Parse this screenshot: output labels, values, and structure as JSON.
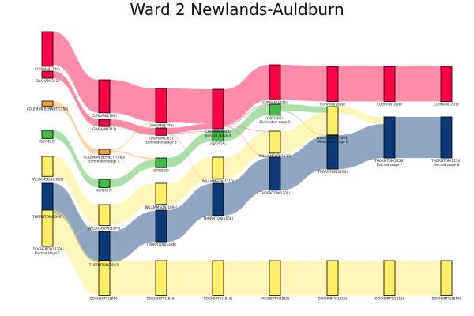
{
  "chart_data": {
    "type": "sankey",
    "title": "Ward 2 Newlands-Auldburn",
    "colors": {
      "CURRAN": "#ff0044",
      "GRAHAM": "#f2003f",
      "COLEMAN BENNETT": "#f5a235",
      "GAY": "#44bb44",
      "WILLIAMSON": "#ffee66",
      "THORNTON": "#0c3a78",
      "DOCHERTY": "#ffee66"
    },
    "stages": [
      {
        "nodes": [
          {
            "id": "s0-CURRAN",
            "candidate": "CURRAN",
            "label": "CURRAN(1794)",
            "value": 1794
          },
          {
            "id": "s0-GRAHAM",
            "candidate": "GRAHAM",
            "label": "GRAHAM(371)",
            "value": 371
          },
          {
            "id": "s0-COLEMAN",
            "candidate": "COLEMAN BENNETT",
            "label": "COLEMAN BENNETT(258)",
            "value": 258
          },
          {
            "id": "s0-GAY",
            "candidate": "GAY",
            "label": "GAY(422)",
            "value": 422
          },
          {
            "id": "s0-WILLIAMSON",
            "candidate": "WILLIAMSON",
            "label": "WILLIAMSON(1032)",
            "value": 1032
          },
          {
            "id": "s0-THORNTON",
            "candidate": "THORNTON",
            "label": "THORNTON(1594)",
            "value": 1594
          },
          {
            "id": "s0-DOCHERTY",
            "candidate": "DOCHERTY",
            "label": "DOCHERTY(1879)",
            "value": 1879,
            "note": "Elected stage 1"
          }
        ]
      },
      {
        "nodes": [
          {
            "id": "s1-CURRAN",
            "candidate": "CURRAN",
            "label": "CURRAN(1708)",
            "value": 1708
          },
          {
            "id": "s1-GRAHAM",
            "candidate": "GRAHAM",
            "label": "GRAHAM(373)",
            "value": 373
          },
          {
            "id": "s1-COLEMAN",
            "candidate": "COLEMAN BENNETT",
            "label": "COLEMAN BENNETT(260)",
            "value": 260,
            "note": "Eliminated stage 2"
          },
          {
            "id": "s1-GAY",
            "candidate": "GAY",
            "label": "GAY(427)",
            "value": 427
          },
          {
            "id": "s1-WILLIAMSON",
            "candidate": "WILLIAMSON",
            "label": "WILLIAMSON(1079)",
            "value": 1079
          },
          {
            "id": "s1-THORNTON",
            "candidate": "THORNTON",
            "label": "THORNTON(1597)",
            "value": 1597
          },
          {
            "id": "s1-DOCHERTY",
            "candidate": "DOCHERTY",
            "label": "DOCHERTY(1816)",
            "value": 1816
          }
        ]
      },
      {
        "nodes": [
          {
            "id": "s2-CURRAN",
            "candidate": "CURRAN",
            "label": "CURRAN(1776)",
            "value": 1776
          },
          {
            "id": "s2-GRAHAM",
            "candidate": "GRAHAM",
            "label": "GRAHAM(381)",
            "value": 381,
            "note": "Eliminated stage 3"
          },
          {
            "id": "s2-GAY",
            "candidate": "GAY",
            "label": "GAY(500)",
            "value": 500
          },
          {
            "id": "s2-WILLIAMSON",
            "candidate": "WILLIAMSON",
            "label": "WILLIAMSON(1094)",
            "value": 1094
          },
          {
            "id": "s2-THORNTON",
            "candidate": "THORNTON",
            "label": "THORNTON(1636)",
            "value": 1636
          },
          {
            "id": "s2-DOCHERTY",
            "candidate": "DOCHERTY",
            "label": "DOCHERTY(1816)",
            "value": 1816
          }
        ]
      },
      {
        "nodes": [
          {
            "id": "s3-CURRAN",
            "candidate": "CURRAN",
            "label": "CURRAN(2044)",
            "value": 2044,
            "note": "Elected stage 4"
          },
          {
            "id": "s3-GAY",
            "candidate": "GAY",
            "label": "GAY(525)",
            "value": 525
          },
          {
            "id": "s3-WILLIAMSON",
            "candidate": "WILLIAMSON",
            "label": "WILLIAMSON(1110)",
            "value": 1110
          },
          {
            "id": "s3-THORNTON",
            "candidate": "THORNTON",
            "label": "THORNTON(1668)",
            "value": 1668
          },
          {
            "id": "s3-DOCHERTY",
            "candidate": "DOCHERTY",
            "label": "DOCHERTY(1816)",
            "value": 1816
          }
        ]
      },
      {
        "nodes": [
          {
            "id": "s4-CURRAN",
            "candidate": "CURRAN",
            "label": "CURRAN(1816)",
            "value": 1816
          },
          {
            "id": "s4-GAY",
            "candidate": "GAY",
            "label": "GAY(566)",
            "value": 566,
            "note": "Eliminated stage 5"
          },
          {
            "id": "s4-WILLIAMSON",
            "candidate": "WILLIAMSON",
            "label": "WILLIAMSON(1139)",
            "value": 1139
          },
          {
            "id": "s4-THORNTON",
            "candidate": "THORNTON",
            "label": "THORNTON(1709)",
            "value": 1709
          },
          {
            "id": "s4-DOCHERTY",
            "candidate": "DOCHERTY",
            "label": "DOCHERTY(1816)",
            "value": 1816
          }
        ]
      },
      {
        "nodes": [
          {
            "id": "s5-CURRAN",
            "candidate": "CURRAN",
            "label": "CURRAN(1816)",
            "value": 1816
          },
          {
            "id": "s5-WILLIAMSON",
            "candidate": "WILLIAMSON",
            "label": "WILLIAMSON(1461)",
            "value": 1461,
            "note": "Eliminated stage 6"
          },
          {
            "id": "s5-THORNTON",
            "candidate": "THORNTON",
            "label": "THORNTON(1760)",
            "value": 1760
          },
          {
            "id": "s5-DOCHERTY",
            "candidate": "DOCHERTY",
            "label": "DOCHERTY(1816)",
            "value": 1816
          }
        ]
      },
      {
        "nodes": [
          {
            "id": "s6-CURRAN",
            "candidate": "CURRAN",
            "label": "CURRAN(1816)",
            "value": 1816
          },
          {
            "id": "s6-THORNTON",
            "candidate": "THORNTON",
            "label": "THORNTON(2126)",
            "value": 2126,
            "note": "Elected stage 7"
          },
          {
            "id": "s6-DOCHERTY",
            "candidate": "DOCHERTY",
            "label": "DOCHERTY(1816)",
            "value": 1816
          }
        ]
      },
      {
        "nodes": [
          {
            "id": "s7-CURRAN",
            "candidate": "CURRAN",
            "label": "CURRAN(1816)",
            "value": 1816
          },
          {
            "id": "s7-THORNTON",
            "candidate": "THORNTON",
            "label": "THORNTON(2126)",
            "value": 2126,
            "note": "Elected stage 8"
          },
          {
            "id": "s7-DOCHERTY",
            "candidate": "DOCHERTY",
            "label": "DOCHERTY(1816)",
            "value": 1816
          }
        ]
      }
    ],
    "links": [
      {
        "source": "s0-CURRAN",
        "target": "s1-CURRAN",
        "value": 1708
      },
      {
        "source": "s0-GRAHAM",
        "target": "s1-GRAHAM",
        "value": 371
      },
      {
        "source": "s0-COLEMAN",
        "target": "s1-COLEMAN",
        "value": 258
      },
      {
        "source": "s0-GAY",
        "target": "s1-GAY",
        "value": 422
      },
      {
        "source": "s0-WILLIAMSON",
        "target": "s1-WILLIAMSON",
        "value": 1032
      },
      {
        "source": "s0-THORNTON",
        "target": "s1-THORNTON",
        "value": 1594
      },
      {
        "source": "s0-DOCHERTY",
        "target": "s1-DOCHERTY",
        "value": 1816
      },
      {
        "source": "s0-DOCHERTY",
        "target": "s1-WILLIAMSON",
        "value": 40
      },
      {
        "source": "s1-CURRAN",
        "target": "s2-CURRAN",
        "value": 1708
      },
      {
        "source": "s1-GRAHAM",
        "target": "s2-GRAHAM",
        "value": 373
      },
      {
        "source": "s1-COLEMAN",
        "target": "s2-CURRAN",
        "value": 68
      },
      {
        "source": "s1-COLEMAN",
        "target": "s2-GAY",
        "value": 73
      },
      {
        "source": "s1-COLEMAN",
        "target": "s2-THORNTON",
        "value": 39
      },
      {
        "source": "s1-GAY",
        "target": "s2-GAY",
        "value": 427
      },
      {
        "source": "s1-WILLIAMSON",
        "target": "s2-WILLIAMSON",
        "value": 1079
      },
      {
        "source": "s1-THORNTON",
        "target": "s2-THORNTON",
        "value": 1597
      },
      {
        "source": "s1-DOCHERTY",
        "target": "s2-DOCHERTY",
        "value": 1816
      },
      {
        "source": "s2-CURRAN",
        "target": "s3-CURRAN",
        "value": 1776
      },
      {
        "source": "s2-GRAHAM",
        "target": "s3-CURRAN",
        "value": 268
      },
      {
        "source": "s2-GRAHAM",
        "target": "s3-GAY",
        "value": 25
      },
      {
        "source": "s2-GRAHAM",
        "target": "s3-THORNTON",
        "value": 32
      },
      {
        "source": "s2-GAY",
        "target": "s3-GAY",
        "value": 500
      },
      {
        "source": "s2-WILLIAMSON",
        "target": "s3-WILLIAMSON",
        "value": 1094
      },
      {
        "source": "s2-THORNTON",
        "target": "s3-THORNTON",
        "value": 1636
      },
      {
        "source": "s2-DOCHERTY",
        "target": "s3-DOCHERTY",
        "value": 1816
      },
      {
        "source": "s3-CURRAN",
        "target": "s4-CURRAN",
        "value": 1816
      },
      {
        "source": "s3-CURRAN",
        "target": "s4-GAY",
        "value": 41
      },
      {
        "source": "s3-CURRAN",
        "target": "s4-WILLIAMSON",
        "value": 29
      },
      {
        "source": "s3-CURRAN",
        "target": "s4-THORNTON",
        "value": 41
      },
      {
        "source": "s3-GAY",
        "target": "s4-GAY",
        "value": 525
      },
      {
        "source": "s3-WILLIAMSON",
        "target": "s4-WILLIAMSON",
        "value": 1110
      },
      {
        "source": "s3-THORNTON",
        "target": "s4-THORNTON",
        "value": 1668
      },
      {
        "source": "s3-DOCHERTY",
        "target": "s4-DOCHERTY",
        "value": 1816
      },
      {
        "source": "s4-CURRAN",
        "target": "s5-CURRAN",
        "value": 1816
      },
      {
        "source": "s4-GAY",
        "target": "s5-WILLIAMSON",
        "value": 322
      },
      {
        "source": "s4-GAY",
        "target": "s5-THORNTON",
        "value": 51
      },
      {
        "source": "s4-WILLIAMSON",
        "target": "s5-WILLIAMSON",
        "value": 1139
      },
      {
        "source": "s4-THORNTON",
        "target": "s5-THORNTON",
        "value": 1709
      },
      {
        "source": "s4-DOCHERTY",
        "target": "s5-DOCHERTY",
        "value": 1816
      },
      {
        "source": "s5-CURRAN",
        "target": "s6-CURRAN",
        "value": 1816
      },
      {
        "source": "s5-WILLIAMSON",
        "target": "s6-THORNTON",
        "value": 366
      },
      {
        "source": "s5-THORNTON",
        "target": "s6-THORNTON",
        "value": 1760
      },
      {
        "source": "s5-DOCHERTY",
        "target": "s6-DOCHERTY",
        "value": 1816
      },
      {
        "source": "s6-CURRAN",
        "target": "s7-CURRAN",
        "value": 1816
      },
      {
        "source": "s6-THORNTON",
        "target": "s7-THORNTON",
        "value": 2126
      },
      {
        "source": "s6-DOCHERTY",
        "target": "s7-DOCHERTY",
        "value": 1816
      }
    ]
  }
}
